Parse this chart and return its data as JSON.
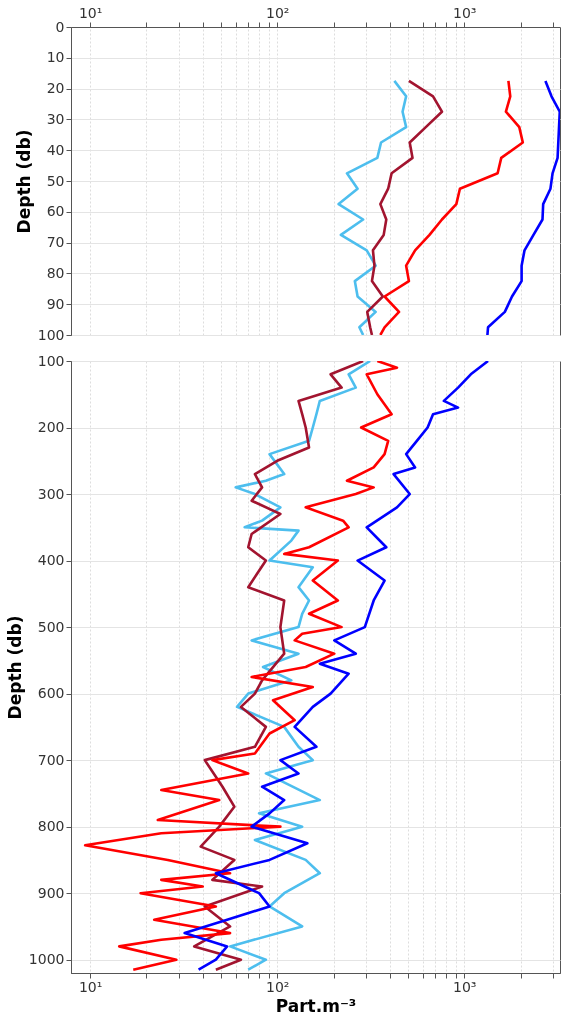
{
  "chart_data": [
    {
      "type": "line",
      "ylabel": "Depth (db)",
      "xlim": [
        7.9,
        3250
      ],
      "ylim": [
        100,
        0
      ],
      "log": "x",
      "grid": true,
      "marker": "none",
      "line_style": "solid",
      "xticks": [
        {
          "value": 10,
          "label": "10¹"
        },
        {
          "value": 20,
          "label": null
        },
        {
          "value": 30,
          "label": null
        },
        {
          "value": 40,
          "label": null
        },
        {
          "value": 50,
          "label": null
        },
        {
          "value": 60,
          "label": null
        },
        {
          "value": 70,
          "label": null
        },
        {
          "value": 80,
          "label": null
        },
        {
          "value": 90,
          "label": null
        },
        {
          "value": 100,
          "label": "10²"
        },
        {
          "value": 200,
          "label": null
        },
        {
          "value": 300,
          "label": null
        },
        {
          "value": 400,
          "label": null
        },
        {
          "value": 500,
          "label": null
        },
        {
          "value": 600,
          "label": null
        },
        {
          "value": 700,
          "label": null
        },
        {
          "value": 800,
          "label": null
        },
        {
          "value": 900,
          "label": null
        },
        {
          "value": 1000,
          "label": "10³"
        },
        {
          "value": 2000,
          "label": null
        },
        {
          "value": 3000,
          "label": null
        }
      ],
      "yticks": [
        0,
        10,
        20,
        30,
        40,
        50,
        60,
        70,
        80,
        90,
        100
      ],
      "series": [
        {
          "color": "#4dbeee",
          "x": [
            423,
            489,
            468,
            489,
            359,
            343,
            236,
            269,
            213,
            288,
            219,
            301,
            336,
            260,
            269,
            336,
            275,
            288
          ],
          "values": [
            17.5,
            22.5,
            27.5,
            32.5,
            37.5,
            42.5,
            47.5,
            52.5,
            57.5,
            62.5,
            67.5,
            72.5,
            77.5,
            82.5,
            87.5,
            92.5,
            97.5,
            100
          ]
        },
        {
          "color": "#a2142f",
          "x": [
            506,
            681,
            760,
            623,
            511,
            529,
            409,
            392,
            356,
            383,
            371,
            325,
            331,
            321,
            367,
            303,
            314,
            321
          ],
          "values": [
            17.5,
            22.5,
            27.5,
            32.5,
            37.5,
            42.5,
            47.5,
            52.5,
            57.5,
            62.5,
            67.5,
            72.5,
            77.5,
            82.5,
            87.5,
            92.5,
            97.5,
            100
          ]
        },
        {
          "color": "#ff0000",
          "x": [
            1722,
            1762,
            1670,
            1969,
            2056,
            1577,
            1508,
            948,
            907,
            760,
            652,
            546,
            489,
            506,
            375,
            448,
            375,
            356
          ],
          "values": [
            17.5,
            22.5,
            27.5,
            32.5,
            37.5,
            42.5,
            47.5,
            52.5,
            57.5,
            62.5,
            67.5,
            72.5,
            77.5,
            82.5,
            87.5,
            92.5,
            97.5,
            100
          ]
        },
        {
          "color": "#0000ff",
          "x": [
            2716,
            2927,
            3240,
            3155,
            2965,
            2890,
            2642,
            2620,
            2345,
            2100,
            2026,
            2026,
            1800,
            1648,
            1340,
            1330
          ],
          "values": [
            17.5,
            22.5,
            27.5,
            42.5,
            47.5,
            52.5,
            57.5,
            62.5,
            67.5,
            72.5,
            77.5,
            82.5,
            87.5,
            92.5,
            97.5,
            100
          ]
        }
      ]
    },
    {
      "type": "line",
      "ylabel": "Depth (db)",
      "xlabel": "Part.m⁻³",
      "xlim": [
        7.9,
        3250
      ],
      "ylim": [
        1020,
        100
      ],
      "log": "x",
      "grid": true,
      "marker": "none",
      "line_style": "solid",
      "xticks": [
        {
          "value": 10,
          "label": "10¹"
        },
        {
          "value": 20,
          "label": null
        },
        {
          "value": 30,
          "label": null
        },
        {
          "value": 40,
          "label": null
        },
        {
          "value": 50,
          "label": null
        },
        {
          "value": 60,
          "label": null
        },
        {
          "value": 70,
          "label": null
        },
        {
          "value": 80,
          "label": null
        },
        {
          "value": 90,
          "label": null
        },
        {
          "value": 100,
          "label": "10²"
        },
        {
          "value": 200,
          "label": null
        },
        {
          "value": 300,
          "label": null
        },
        {
          "value": 400,
          "label": null
        },
        {
          "value": 500,
          "label": null
        },
        {
          "value": 600,
          "label": null
        },
        {
          "value": 700,
          "label": null
        },
        {
          "value": 800,
          "label": null
        },
        {
          "value": 900,
          "label": null
        },
        {
          "value": 1000,
          "label": "10³"
        },
        {
          "value": 2000,
          "label": null
        },
        {
          "value": 3000,
          "label": null
        }
      ],
      "yticks": [
        100,
        200,
        300,
        400,
        500,
        600,
        700,
        800,
        900,
        1000
      ],
      "series": [
        {
          "color": "#4dbeee",
          "x": [
            314,
            241,
            263,
            169,
            162,
            155,
            148,
            91,
            109,
            87,
            60,
            76,
            104,
            83,
            67,
            130,
            119,
            91,
            155,
            130,
            148,
            136,
            130,
            73,
            130,
            84,
            119,
            70,
            61,
            109,
            130,
            155,
            87,
            169,
            80,
            136,
            76,
            142,
            169,
            109,
            91,
            136,
            56,
            87,
            70
          ],
          "values": [
            100,
            120,
            140,
            160,
            180,
            200,
            220,
            240,
            270,
            280,
            290,
            300,
            320,
            340,
            350,
            355,
            370,
            400,
            410,
            440,
            460,
            480,
            500,
            520,
            540,
            560,
            580,
            600,
            620,
            650,
            680,
            700,
            720,
            760,
            780,
            800,
            820,
            850,
            870,
            900,
            920,
            950,
            980,
            1000,
            1015
          ]
        },
        {
          "color": "#a2142f",
          "x": [
            288,
            193,
            221,
            130,
            136,
            142,
            148,
            100,
            76,
            83,
            73,
            104,
            73,
            70,
            87,
            70,
            109,
            104,
            109,
            83,
            76,
            64,
            87,
            76,
            41,
            51,
            59,
            49,
            39,
            59,
            45,
            83,
            41,
            56,
            36,
            64,
            47
          ],
          "values": [
            100,
            120,
            140,
            160,
            180,
            200,
            230,
            250,
            270,
            290,
            310,
            330,
            360,
            380,
            400,
            440,
            460,
            500,
            540,
            580,
            600,
            620,
            650,
            680,
            700,
            740,
            770,
            800,
            830,
            850,
            880,
            890,
            920,
            950,
            980,
            1000,
            1015
          ]
        },
        {
          "color": "#ff0000",
          "x": [
            343,
            437,
            301,
            343,
            409,
            281,
            392,
            375,
            328,
            236,
            328,
            263,
            142,
            225,
            241,
            148,
            109,
            211,
            155,
            211,
            148,
            221,
            136,
            124,
            202,
            142,
            73,
            155,
            95,
            124,
            91,
            76,
            45,
            70,
            24,
            49,
            23,
            104,
            24,
            9.4,
            26,
            56,
            24,
            40,
            18.6,
            47,
            22,
            56,
            24,
            14.3,
            28.9,
            17
          ],
          "values": [
            100,
            110,
            120,
            150,
            180,
            200,
            220,
            240,
            260,
            280,
            290,
            300,
            320,
            340,
            350,
            380,
            390,
            400,
            430,
            460,
            480,
            500,
            510,
            520,
            540,
            560,
            575,
            590,
            610,
            640,
            660,
            690,
            700,
            720,
            745,
            760,
            790,
            800,
            810,
            828,
            850,
            870,
            880,
            890,
            900,
            920,
            940,
            960,
            970,
            980,
            1000,
            1015
          ]
        },
        {
          "color": "#0000ff",
          "x": [
            1340,
            1084,
            927,
            778,
            927,
            681,
            637,
            558,
            489,
            546,
            419,
            511,
            437,
            301,
            383,
            269,
            375,
            328,
            294,
            202,
            263,
            169,
            241,
            193,
            155,
            124,
            162,
            104,
            130,
            83,
            109,
            91,
            73,
            145,
            91,
            47,
            80,
            91,
            54,
            32,
            54,
            47,
            38
          ],
          "values": [
            100,
            120,
            140,
            160,
            170,
            180,
            200,
            220,
            240,
            260,
            270,
            300,
            320,
            350,
            380,
            400,
            430,
            460,
            500,
            520,
            540,
            555,
            570,
            600,
            620,
            650,
            680,
            700,
            720,
            740,
            760,
            780,
            800,
            825,
            850,
            870,
            900,
            920,
            940,
            960,
            980,
            1000,
            1015
          ]
        }
      ]
    }
  ]
}
